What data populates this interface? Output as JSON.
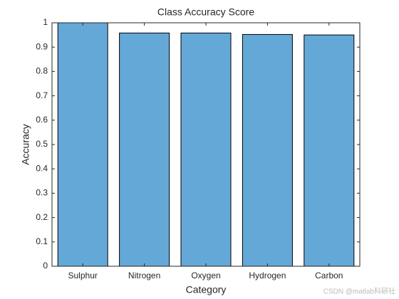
{
  "chart_data": {
    "type": "bar",
    "title": "Class Accuracy Score",
    "xlabel": "Category",
    "ylabel": "Accuracy",
    "categories": [
      "Sulphur",
      "Nitrogen",
      "Oxygen",
      "Hydrogen",
      "Carbon"
    ],
    "values": [
      1.0,
      0.958,
      0.958,
      0.952,
      0.95
    ],
    "color": "#64a8d8",
    "ylim": [
      0,
      1
    ],
    "yticks": [
      0,
      0.1,
      0.2,
      0.3,
      0.4,
      0.5,
      0.6,
      0.7,
      0.8,
      0.9,
      1
    ],
    "grid": false
  },
  "watermark": "CSDN @matlab科研社"
}
